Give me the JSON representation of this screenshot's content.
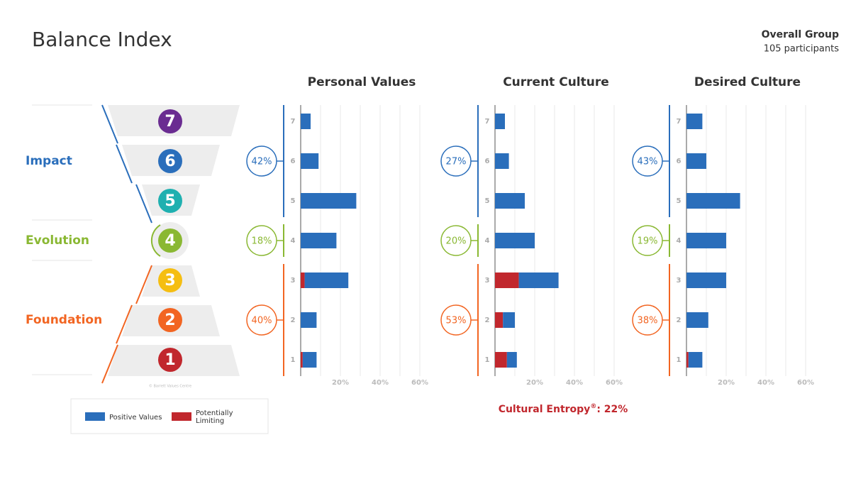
{
  "header": {
    "title": "Balance Index",
    "group": "Overall Group",
    "participants": "105 participants"
  },
  "pyramid": {
    "levels": [
      {
        "label": "7",
        "color": "#6a2c91"
      },
      {
        "label": "6",
        "color": "#2a6ebb"
      },
      {
        "label": "5",
        "color": "#1fb0b0"
      },
      {
        "label": "4",
        "color": "#8ab833"
      },
      {
        "label": "3",
        "color": "#f5be12"
      },
      {
        "label": "2",
        "color": "#f26522"
      },
      {
        "label": "1",
        "color": "#c1272d"
      }
    ],
    "groups": [
      {
        "name": "Impact",
        "color": "#2a6ebb"
      },
      {
        "name": "Evolution",
        "color": "#8ab833"
      },
      {
        "name": "Foundation",
        "color": "#f26522"
      }
    ],
    "credit": "© Barrett Values Centre"
  },
  "entropy": {
    "title": "Cultural Entropy",
    "symbol": "®",
    "text": ": 22%"
  },
  "chart_data": [
    {
      "type": "bar",
      "orientation": "horizontal",
      "stacked": true,
      "title": "Personal Values",
      "categories": [
        "1",
        "2",
        "3",
        "4",
        "5",
        "6",
        "7"
      ],
      "series": [
        {
          "name": "Potentially Limiting",
          "color": "#c1272d",
          "values": [
            1,
            0,
            2,
            0,
            0,
            0,
            0
          ]
        },
        {
          "name": "Positive Values",
          "color": "#2a6ebb",
          "values": [
            7,
            8,
            22,
            18,
            28,
            9,
            5
          ]
        }
      ],
      "group_shares": {
        "values": [
          42,
          18,
          40
        ],
        "value_labels": [
          "42%",
          "18%",
          "40%"
        ]
      },
      "xlim": [
        0,
        62
      ],
      "xticks": [
        {
          "value": 20,
          "label": "20%"
        },
        {
          "value": 40,
          "label": "40%"
        },
        {
          "value": 60,
          "label": "60%"
        }
      ],
      "minor_xticks": [
        10,
        30,
        50
      ],
      "grid": true
    },
    {
      "type": "bar",
      "orientation": "horizontal",
      "stacked": true,
      "title": "Current Culture",
      "categories": [
        "1",
        "2",
        "3",
        "4",
        "5",
        "6",
        "7"
      ],
      "series": [
        {
          "name": "Potentially Limiting",
          "color": "#c1272d",
          "values": [
            6,
            4,
            12,
            0,
            0,
            0,
            0
          ]
        },
        {
          "name": "Positive Values",
          "color": "#2a6ebb",
          "values": [
            5,
            6,
            20,
            20,
            15,
            7,
            5
          ]
        }
      ],
      "group_shares": {
        "values": [
          27,
          20,
          53
        ],
        "value_labels": [
          "27%",
          "20%",
          "53%"
        ]
      },
      "xlim": [
        0,
        62
      ],
      "xticks": [
        {
          "value": 20,
          "label": "20%"
        },
        {
          "value": 40,
          "label": "40%"
        },
        {
          "value": 60,
          "label": "60%"
        }
      ],
      "minor_xticks": [
        10,
        30,
        50
      ],
      "grid": true
    },
    {
      "type": "bar",
      "orientation": "horizontal",
      "stacked": true,
      "title": "Desired Culture",
      "categories": [
        "1",
        "2",
        "3",
        "4",
        "5",
        "6",
        "7"
      ],
      "series": [
        {
          "name": "Potentially Limiting",
          "color": "#c1272d",
          "values": [
            1,
            0,
            0,
            0,
            0,
            0,
            0
          ]
        },
        {
          "name": "Positive Values",
          "color": "#2a6ebb",
          "values": [
            7,
            11,
            20,
            20,
            27,
            10,
            8
          ]
        }
      ],
      "group_shares": {
        "values": [
          43,
          19,
          38
        ],
        "value_labels": [
          "43%",
          "19%",
          "38%"
        ]
      },
      "xlim": [
        0,
        62
      ],
      "xticks": [
        {
          "value": 20,
          "label": "20%"
        },
        {
          "value": 40,
          "label": "40%"
        },
        {
          "value": 60,
          "label": "60%"
        }
      ],
      "minor_xticks": [
        10,
        30,
        50
      ],
      "grid": true
    }
  ]
}
